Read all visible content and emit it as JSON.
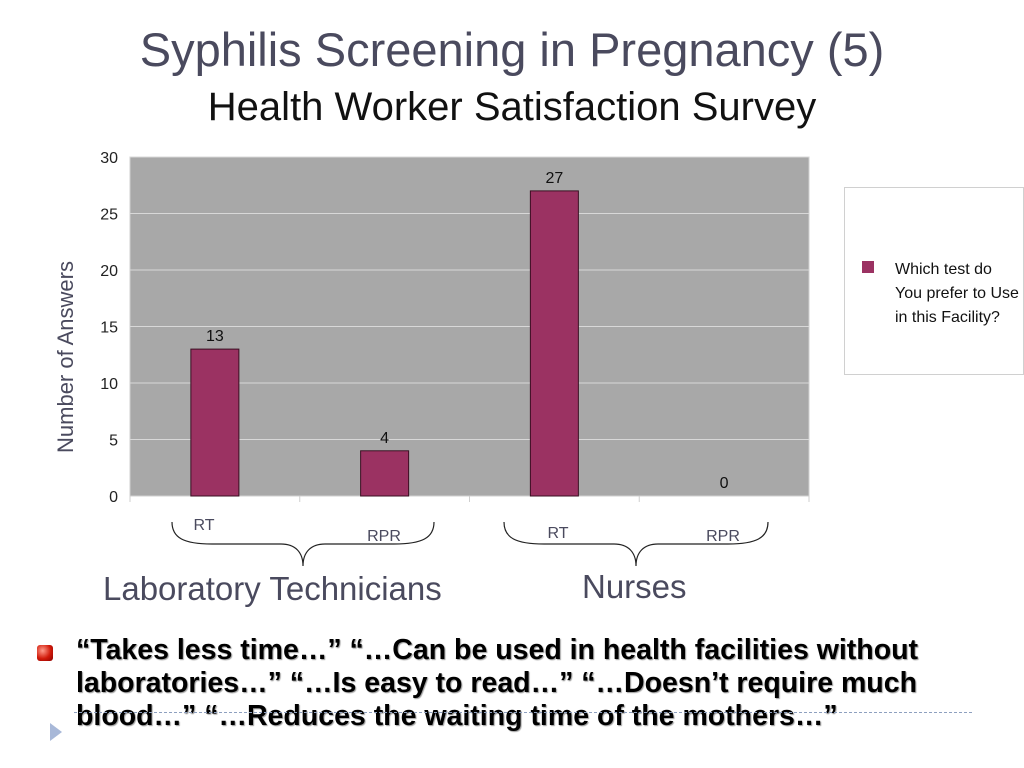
{
  "slide": {
    "title": "Syphilis Screening in Pregnancy (5)",
    "subtitle": "Health Worker Satisfaction Survey",
    "group_labels": [
      "Laboratory Technicians",
      "Nurses"
    ],
    "quote": "“Takes less time…” “…Can be used in health facilities without laboratories…” “…Is easy to read…” “…Doesn’t require much blood…” “…Reduces the waiting time of the mothers…”"
  },
  "chart_data": {
    "type": "bar",
    "categories": [
      "RT",
      "RPR",
      "RT",
      "RPR"
    ],
    "groups": [
      "Laboratory Technicians",
      "Nurses"
    ],
    "series": [
      {
        "name": "Which test do You prefer to Use in this Facility?",
        "values": [
          13,
          4,
          27,
          0
        ],
        "color": "#9b3262"
      }
    ],
    "title": "",
    "xlabel": "",
    "ylabel": "Number of Answers",
    "ylim": [
      0,
      30
    ],
    "yticks": [
      0,
      5,
      10,
      15,
      20,
      25,
      30
    ],
    "data_labels": true,
    "grid": true,
    "legend_position": "right",
    "plot_background": "#a8a8a8"
  }
}
